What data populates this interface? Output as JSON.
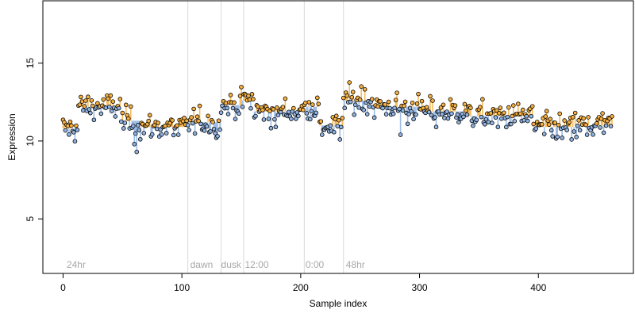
{
  "chart_data": {
    "type": "scatter",
    "title": "",
    "xlabel": "Sample index",
    "ylabel": "Expression",
    "xlim": [
      -17,
      480
    ],
    "ylim": [
      1.5,
      19
    ],
    "x_ticks": [
      0,
      100,
      200,
      300,
      400
    ],
    "y_ticks": [
      5,
      10,
      15
    ],
    "grid": false,
    "vertical_lines": [
      105,
      133,
      152,
      203,
      236
    ],
    "section_labels": [
      {
        "x": 3,
        "text": "24hr"
      },
      {
        "x": 107,
        "text": "dawn"
      },
      {
        "x": 133,
        "text": "dusk"
      },
      {
        "x": 153,
        "text": "12:00"
      },
      {
        "x": 204,
        "text": "0:00"
      },
      {
        "x": 238,
        "text": "48hr"
      }
    ],
    "colors": {
      "points_high": "#f5b041",
      "points_low": "#8fb3e3",
      "segment_orange": "#f5b041",
      "segment_blue": "#8fb3e3",
      "vline": "#d9d9d9"
    },
    "segments": [
      {
        "start": 0,
        "end": 12,
        "value": 10.8
      },
      {
        "start": 13,
        "end": 48,
        "value": 12.2
      },
      {
        "start": 49,
        "end": 64,
        "value": 11.3
      },
      {
        "start": 65,
        "end": 104,
        "value": 10.9
      },
      {
        "start": 105,
        "end": 132,
        "value": 11.2
      },
      {
        "start": 133,
        "end": 150,
        "value": 12.3
      },
      {
        "start": 151,
        "end": 160,
        "value": 12.6
      },
      {
        "start": 161,
        "end": 202,
        "value": 11.9
      },
      {
        "start": 203,
        "end": 215,
        "value": 12.2
      },
      {
        "start": 216,
        "end": 235,
        "value": 11.0
      },
      {
        "start": 236,
        "end": 260,
        "value": 12.6
      },
      {
        "start": 261,
        "end": 300,
        "value": 12.2
      },
      {
        "start": 301,
        "end": 340,
        "value": 11.9
      },
      {
        "start": 341,
        "end": 395,
        "value": 11.6
      },
      {
        "start": 396,
        "end": 430,
        "value": 10.9
      },
      {
        "start": 431,
        "end": 462,
        "value": 11.0
      }
    ],
    "spikes": [
      {
        "x": 62,
        "value": 9.3
      },
      {
        "x": 60,
        "value": 9.8
      },
      {
        "x": 74,
        "value": 10.3
      },
      {
        "x": 97,
        "value": 10.4
      },
      {
        "x": 128,
        "value": 10.5
      },
      {
        "x": 152,
        "value": 13.0
      },
      {
        "x": 179,
        "value": 10.9
      },
      {
        "x": 218,
        "value": 10.4
      },
      {
        "x": 233,
        "value": 10.1
      },
      {
        "x": 238,
        "value": 13.1
      },
      {
        "x": 251,
        "value": 13.5
      },
      {
        "x": 284,
        "value": 10.4
      },
      {
        "x": 290,
        "value": 11.1
      },
      {
        "x": 314,
        "value": 10.9
      },
      {
        "x": 366,
        "value": 10.9
      },
      {
        "x": 398,
        "value": 10.8
      },
      {
        "x": 412,
        "value": 10.3
      },
      {
        "x": 420,
        "value": 10.2
      },
      {
        "x": 428,
        "value": 10.1
      },
      {
        "x": 441,
        "value": 10.4
      }
    ],
    "n_points": 463,
    "noise_sd": 0.42
  }
}
